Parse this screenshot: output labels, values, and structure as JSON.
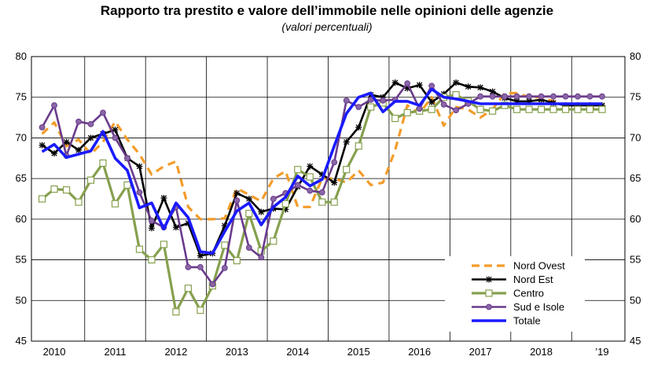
{
  "chart_data": {
    "type": "line",
    "title": "Rapporto tra prestito e valore dell’immobile nelle opinioni delle agenzie",
    "subtitle": "(valori percentuali)",
    "xlabel": "",
    "ylabel": "",
    "ylim": [
      45,
      80
    ],
    "yticks": [
      45,
      50,
      55,
      60,
      65,
      70,
      75,
      80
    ],
    "year_labels": [
      "2010",
      "2011",
      "2012",
      "2013",
      "2014",
      "2015",
      "2016",
      "2017",
      "2018",
      "’19"
    ],
    "x_range": [
      2009.625,
      2019.375
    ],
    "x": [
      2009.8,
      2010.0,
      2010.2,
      2010.4,
      2010.6,
      2010.8,
      2011.0,
      2011.2,
      2011.4,
      2011.6,
      2011.8,
      2012.0,
      2012.2,
      2012.4,
      2012.6,
      2012.8,
      2013.0,
      2013.2,
      2013.4,
      2013.6,
      2013.8,
      2014.0,
      2014.2,
      2014.4,
      2014.6,
      2014.8,
      2015.0,
      2015.2,
      2015.4,
      2015.6,
      2015.8,
      2016.0,
      2016.2,
      2016.4,
      2016.6,
      2016.8,
      2017.0,
      2017.2,
      2017.4,
      2017.6,
      2017.8,
      2018.0,
      2018.2,
      2018.4,
      2018.6,
      2018.8,
      2019.0
    ],
    "series": [
      {
        "name": "Nord Ovest",
        "color": "#f39c2a",
        "values": [
          70.5,
          71.9,
          69.0,
          69.8,
          68.0,
          69.5,
          72.0,
          69.8,
          68.0,
          65.5,
          66.5,
          67.1,
          61.5,
          60.0,
          60.0,
          60.1,
          63.8,
          63.0,
          62.2,
          65.0,
          65.9,
          61.5,
          61.5,
          65.0,
          65.0,
          64.5,
          66.0,
          64.2,
          64.5,
          68.5,
          74.0,
          73.0,
          75.0,
          71.5,
          73.8,
          73.5,
          72.5,
          73.5,
          75.5,
          75.5,
          75.0,
          75.0,
          74.5,
          74.0,
          73.5,
          73.5,
          74.0
        ]
      },
      {
        "name": "Nord Est",
        "color": "#000000",
        "values": [
          69.1,
          68.1,
          69.5,
          68.5,
          70.0,
          70.5,
          71.0,
          67.5,
          66.5,
          58.9,
          62.6,
          59.0,
          59.5,
          55.5,
          55.8,
          59.2,
          63.2,
          62.5,
          60.9,
          61.3,
          61.2,
          64.0,
          66.5,
          65.5,
          64.5,
          69.5,
          71.3,
          75.3,
          75.0,
          76.8,
          76.1,
          76.5,
          74.4,
          75.4,
          76.8,
          76.3,
          76.2,
          75.7,
          74.9,
          74.5,
          74.5,
          74.7,
          74.3,
          74.0,
          74.0,
          74.0,
          74.0
        ]
      },
      {
        "name": "Centro",
        "color": "#86a04e",
        "values": [
          62.5,
          63.7,
          63.6,
          62.1,
          64.8,
          66.9,
          61.9,
          64.2,
          56.3,
          55.0,
          56.9,
          48.6,
          51.5,
          48.8,
          51.8,
          56.8,
          54.9,
          60.7,
          56.1,
          57.3,
          61.9,
          66.1,
          65.2,
          62.1,
          62.1,
          66.1,
          69.0,
          73.8,
          74.3,
          72.4,
          73.1,
          73.3,
          73.5,
          75.0,
          75.3,
          74.5,
          73.5,
          73.3,
          74.0,
          73.5,
          73.5,
          73.5,
          73.5,
          73.5,
          73.5,
          73.5,
          73.5
        ]
      },
      {
        "name": "Sud e Isole",
        "color": "#6a3b8c",
        "values": [
          71.3,
          74.0,
          67.8,
          72.0,
          71.7,
          73.1,
          70.0,
          67.5,
          63.3,
          59.8,
          59.0,
          61.5,
          54.1,
          54.1,
          52.0,
          54.0,
          62.3,
          56.5,
          55.3,
          62.5,
          63.2,
          64.2,
          63.5,
          63.3,
          67.0,
          74.6,
          73.8,
          74.7,
          74.6,
          74.7,
          76.7,
          73.6,
          76.4,
          74.1,
          73.4,
          74.2,
          75.1,
          75.1,
          75.1,
          75.1,
          75.1,
          75.1,
          75.1,
          75.1,
          75.1,
          75.1,
          75.1
        ]
      },
      {
        "name": "Totale",
        "color": "#1a1aff",
        "values": [
          68.3,
          69.2,
          67.6,
          68.0,
          68.4,
          70.8,
          67.5,
          66.0,
          61.4,
          62.0,
          58.8,
          62.0,
          60.2,
          56.0,
          55.8,
          58.5,
          61.0,
          62.0,
          59.3,
          61.5,
          62.7,
          65.3,
          64.1,
          64.9,
          69.0,
          73.0,
          75.0,
          75.5,
          73.2,
          74.5,
          74.5,
          74.0,
          76.0,
          75.0,
          74.8,
          74.5,
          74.2,
          74.2,
          74.2,
          74.2,
          74.2,
          74.2,
          74.2,
          74.2,
          74.2,
          74.2,
          74.2
        ]
      }
    ]
  }
}
